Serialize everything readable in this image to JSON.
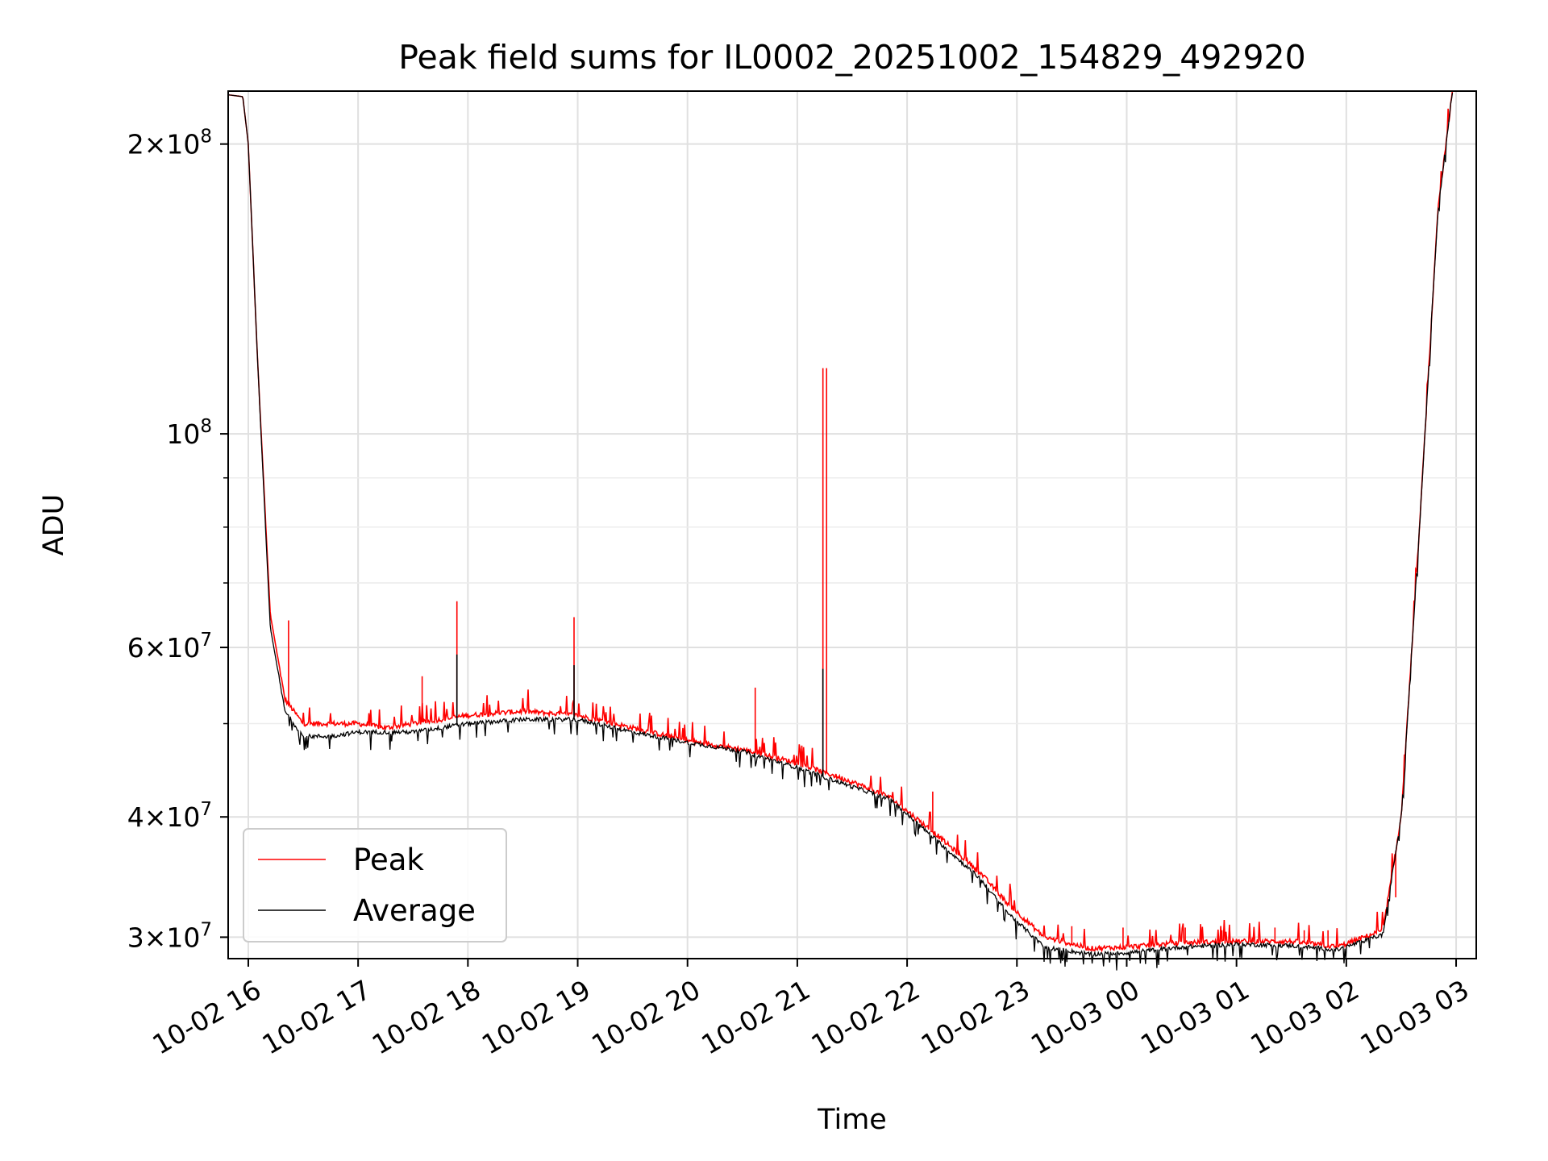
{
  "chart_data": {
    "type": "line",
    "title": "Peak field sums for IL0002_20251002_154829_492920",
    "xlabel": "Time",
    "ylabel": "ADU",
    "yscale": "log",
    "ylim": [
      28500000,
      227000000
    ],
    "xlim": [
      "2025-10-02 15:49",
      "2025-10-03 03:11"
    ],
    "grid": true,
    "legend_position": "lower left",
    "x_ticks": [
      {
        "t": "2025-10-02 16:00",
        "label": "10-02 16"
      },
      {
        "t": "2025-10-02 17:00",
        "label": "10-02 17"
      },
      {
        "t": "2025-10-02 18:00",
        "label": "10-02 18"
      },
      {
        "t": "2025-10-02 19:00",
        "label": "10-02 19"
      },
      {
        "t": "2025-10-02 20:00",
        "label": "10-02 20"
      },
      {
        "t": "2025-10-02 21:00",
        "label": "10-02 21"
      },
      {
        "t": "2025-10-02 22:00",
        "label": "10-02 22"
      },
      {
        "t": "2025-10-02 23:00",
        "label": "10-02 23"
      },
      {
        "t": "2025-10-03 00:00",
        "label": "10-03 00"
      },
      {
        "t": "2025-10-03 01:00",
        "label": "10-03 01"
      },
      {
        "t": "2025-10-03 02:00",
        "label": "10-03 02"
      },
      {
        "t": "2025-10-03 03:00",
        "label": "10-03 03"
      }
    ],
    "y_ticks": [
      {
        "value": 30000000,
        "mantissa": "3",
        "exp": "7"
      },
      {
        "value": 40000000,
        "mantissa": "4",
        "exp": "7"
      },
      {
        "value": 60000000,
        "mantissa": "6",
        "exp": "7"
      },
      {
        "value": 100000000,
        "mantissa": "",
        "exp": "8"
      },
      {
        "value": 200000000,
        "mantissa": "2",
        "exp": "8"
      }
    ],
    "y_minor_ticks": [
      50000000,
      70000000,
      80000000,
      90000000
    ],
    "series": [
      {
        "name": "Peak",
        "color": "#ff0000",
        "points": [
          [
            "2025-10-02 15:49",
            225000000
          ],
          [
            "2025-10-02 15:57",
            224000000
          ],
          [
            "2025-10-02 16:00",
            200000000
          ],
          [
            "2025-10-02 16:05",
            120000000
          ],
          [
            "2025-10-02 16:12",
            65000000
          ],
          [
            "2025-10-02 16:20",
            53000000
          ],
          [
            "2025-10-02 16:30",
            50000000
          ],
          [
            "2025-10-02 16:45",
            50000000
          ],
          [
            "2025-10-02 17:00",
            50000000
          ],
          [
            "2025-10-02 17:15",
            49500000
          ],
          [
            "2025-10-02 17:30",
            50000000
          ],
          [
            "2025-10-02 18:00",
            51000000
          ],
          [
            "2025-10-02 18:30",
            51500000
          ],
          [
            "2025-10-02 19:00",
            51000000
          ],
          [
            "2025-10-02 19:30",
            49500000
          ],
          [
            "2025-10-02 20:00",
            48000000
          ],
          [
            "2025-10-02 20:30",
            47000000
          ],
          [
            "2025-10-02 21:00",
            45500000
          ],
          [
            "2025-10-02 21:30",
            43500000
          ],
          [
            "2025-10-02 21:50",
            42000000
          ],
          [
            "2025-10-02 22:15",
            38500000
          ],
          [
            "2025-10-02 22:40",
            35000000
          ],
          [
            "2025-10-02 22:55",
            32500000
          ],
          [
            "2025-10-02 23:15",
            30000000
          ],
          [
            "2025-10-02 23:40",
            29200000
          ],
          [
            "2025-10-03 00:00",
            29300000
          ],
          [
            "2025-10-03 00:30",
            29600000
          ],
          [
            "2025-10-03 01:00",
            29700000
          ],
          [
            "2025-10-03 01:30",
            29700000
          ],
          [
            "2025-10-03 01:55",
            29300000
          ],
          [
            "2025-10-03 02:20",
            30500000
          ],
          [
            "2025-10-03 02:30",
            40000000
          ],
          [
            "2025-10-03 02:40",
            80000000
          ],
          [
            "2025-10-03 02:50",
            170000000
          ],
          [
            "2025-10-03 02:58",
            227000000
          ]
        ],
        "spikes": [
          [
            "2025-10-02 16:22",
            64000000
          ],
          [
            "2025-10-02 17:35",
            56000000
          ],
          [
            "2025-10-02 17:54",
            67000000
          ],
          [
            "2025-10-02 18:58",
            64500000
          ],
          [
            "2025-10-02 20:37",
            54500000
          ],
          [
            "2025-10-02 21:14",
            117000000
          ],
          [
            "2025-10-02 21:16",
            117000000
          ],
          [
            "2025-10-02 22:14",
            42500000
          ],
          [
            "2025-10-02 23:30",
            30800000
          ],
          [
            "2025-10-02 23:58",
            30700000
          ],
          [
            "2025-10-03 00:32",
            30700000
          ],
          [
            "2025-10-03 00:52",
            30500000
          ],
          [
            "2025-10-03 01:21",
            30700000
          ],
          [
            "2025-10-03 01:37",
            30500000
          ],
          [
            "2025-10-03 01:50",
            30500000
          ],
          [
            "2025-10-03 02:27",
            33000000
          ]
        ]
      },
      {
        "name": "Average",
        "color": "#000000",
        "points": [
          [
            "2025-10-02 15:49",
            225000000
          ],
          [
            "2025-10-02 15:57",
            224000000
          ],
          [
            "2025-10-02 16:00",
            200000000
          ],
          [
            "2025-10-02 16:05",
            120000000
          ],
          [
            "2025-10-02 16:12",
            63000000
          ],
          [
            "2025-10-02 16:20",
            51500000
          ],
          [
            "2025-10-02 16:30",
            48500000
          ],
          [
            "2025-10-02 16:45",
            48500000
          ],
          [
            "2025-10-02 17:00",
            49000000
          ],
          [
            "2025-10-02 17:15",
            49000000
          ],
          [
            "2025-10-02 17:30",
            49000000
          ],
          [
            "2025-10-02 18:00",
            50000000
          ],
          [
            "2025-10-02 18:30",
            50500000
          ],
          [
            "2025-10-02 19:00",
            50500000
          ],
          [
            "2025-10-02 19:30",
            49000000
          ],
          [
            "2025-10-02 20:00",
            47800000
          ],
          [
            "2025-10-02 20:30",
            46800000
          ],
          [
            "2025-10-02 21:00",
            45000000
          ],
          [
            "2025-10-02 21:30",
            43000000
          ],
          [
            "2025-10-02 21:50",
            41800000
          ],
          [
            "2025-10-02 22:15",
            38000000
          ],
          [
            "2025-10-02 22:40",
            34500000
          ],
          [
            "2025-10-02 22:55",
            31800000
          ],
          [
            "2025-10-02 23:15",
            29300000
          ],
          [
            "2025-10-02 23:40",
            28800000
          ],
          [
            "2025-10-03 00:00",
            28900000
          ],
          [
            "2025-10-03 00:30",
            29300000
          ],
          [
            "2025-10-03 01:00",
            29500000
          ],
          [
            "2025-10-03 01:30",
            29400000
          ],
          [
            "2025-10-03 01:55",
            29100000
          ],
          [
            "2025-10-03 02:20",
            30200000
          ],
          [
            "2025-10-03 02:30",
            40000000
          ],
          [
            "2025-10-03 02:40",
            80000000
          ],
          [
            "2025-10-03 02:50",
            170000000
          ],
          [
            "2025-10-03 02:58",
            227000000
          ]
        ],
        "spikes": [
          [
            "2025-10-02 17:54",
            59000000
          ],
          [
            "2025-10-02 18:58",
            57500000
          ],
          [
            "2025-10-02 21:14",
            57000000
          ]
        ]
      }
    ]
  }
}
